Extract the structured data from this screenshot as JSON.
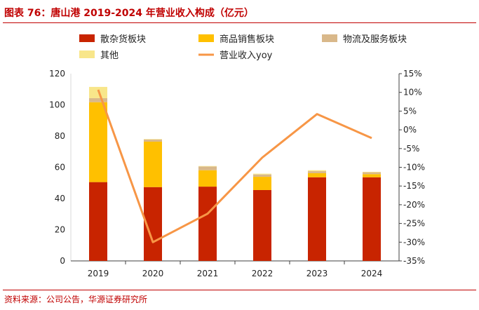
{
  "title": "图表 76：唐山港 2019-2024 年营业收入构成（亿元）",
  "source": "资料来源：公司公告，华源证券研究所",
  "chart_data": {
    "type": "bar",
    "stacked": true,
    "categories": [
      "2019",
      "2020",
      "2021",
      "2022",
      "2023",
      "2024"
    ],
    "series": [
      {
        "name": "散杂货板块",
        "color": "#c82400",
        "values": [
          50.5,
          47.3,
          47.6,
          45.4,
          53.6,
          53.6
        ]
      },
      {
        "name": "商品销售板块",
        "color": "#ffc000",
        "values": [
          51.2,
          29.1,
          10.5,
          8.5,
          2.6,
          2.0
        ]
      },
      {
        "name": "物流及服务板块",
        "color": "#d9b88a",
        "values": [
          2.6,
          1.4,
          2.4,
          1.5,
          1.3,
          1.2
        ]
      },
      {
        "name": "其他",
        "color": "#f8e68a",
        "values": [
          7.2,
          0.3,
          0.3,
          0.5,
          0.6,
          0.3
        ]
      }
    ],
    "line_series": {
      "name": "营业收入yoy",
      "color": "#f79646",
      "axis": "right",
      "values": [
        10.7,
        -30.0,
        -22.4,
        -7.4,
        4.2,
        -2.2
      ]
    },
    "y_left": {
      "min": 0,
      "max": 120,
      "ticks": [
        "0",
        "20",
        "40",
        "60",
        "80",
        "100",
        "120"
      ]
    },
    "y_right": {
      "min": -35,
      "max": 15,
      "ticks": [
        "-35%",
        "-30%",
        "-25%",
        "-20%",
        "-15%",
        "-10%",
        "-5%",
        "0%",
        "5%",
        "10%",
        "15%"
      ]
    },
    "legend": "top",
    "grid": false
  }
}
